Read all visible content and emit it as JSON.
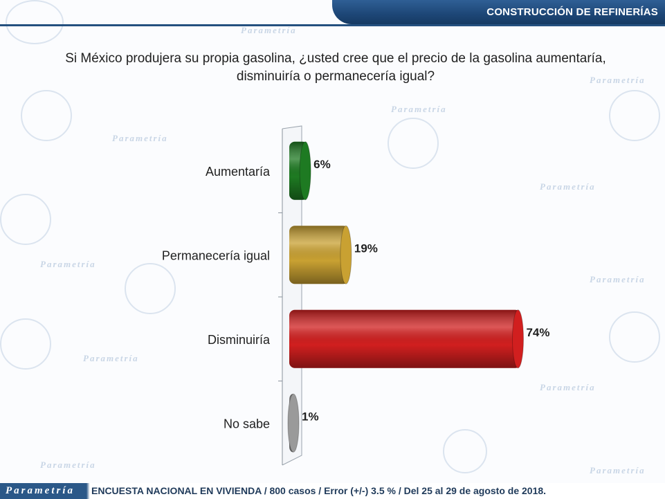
{
  "header": {
    "title": "CONSTRUCCIÓN DE REFINERÍAS"
  },
  "question": {
    "line1": "Si México produjera su propia gasolina, ¿usted cree que el precio de la gasolina aumentaría,",
    "line2": "disminuiría o permanecería igual?"
  },
  "chart_data": {
    "type": "bar",
    "orientation": "horizontal",
    "categories": [
      "Aumentaría",
      "Permanecería igual",
      "Disminuiría",
      "No sabe"
    ],
    "values": [
      6,
      19,
      74,
      1
    ],
    "value_labels": [
      "6%",
      "19%",
      "74%",
      "1%"
    ],
    "colors": [
      "#1e7a22",
      "#c9a132",
      "#d11f1f",
      "#9a9a9a"
    ],
    "xlim": [
      0,
      100
    ],
    "grid": false,
    "legend": "none"
  },
  "watermark": {
    "brand": "Parametría"
  },
  "footer": {
    "brand": "Parametría",
    "text": "ENCUESTA NACIONAL EN VIVIENDA / 800 casos / Error (+/-) 3.5 % / Del 25 al 29 de agosto de 2018."
  }
}
